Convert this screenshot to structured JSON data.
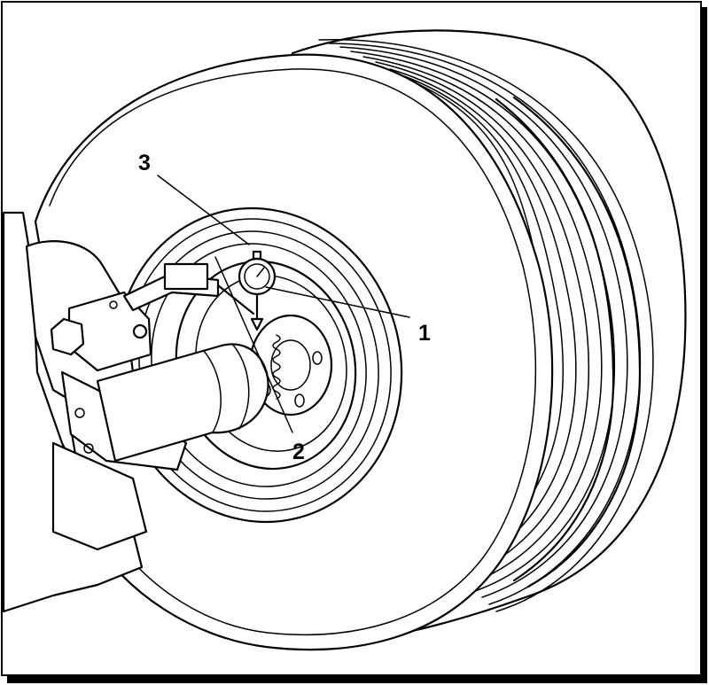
{
  "figure": {
    "callouts": [
      {
        "id": "c1",
        "label": "1"
      },
      {
        "id": "c2",
        "label": "2"
      },
      {
        "id": "c3",
        "label": "3"
      }
    ],
    "colors": {
      "ink": "#000000",
      "paper": "#ffffff"
    }
  }
}
